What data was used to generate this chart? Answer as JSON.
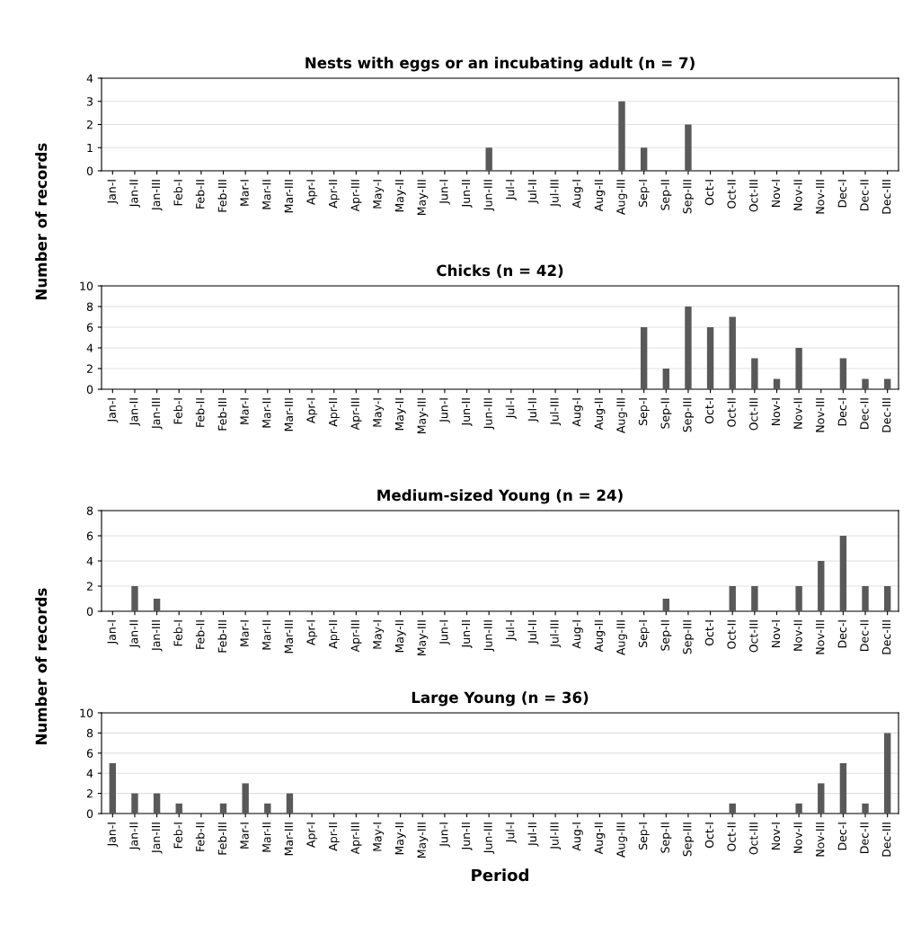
{
  "chart_data": [
    {
      "type": "bar",
      "title": "Nests with eggs or an incubating adult (n = 7)",
      "ylabel": "Number of records",
      "categories": [
        "Jan-I",
        "Jan-II",
        "Jan-III",
        "Feb-I",
        "Feb-II",
        "Feb-III",
        "Mar-I",
        "Mar-II",
        "Mar-III",
        "Apr-I",
        "Apr-II",
        "Apr-III",
        "May-I",
        "May-II",
        "May-III",
        "Jun-I",
        "Jun-II",
        "Jun-III",
        "Jul-I",
        "Jul-II",
        "Jul-III",
        "Aug-I",
        "Aug-II",
        "Aug-III",
        "Sep-I",
        "Sep-II",
        "Sep-III",
        "Oct-I",
        "Oct-II",
        "Oct-III",
        "Nov-I",
        "Nov-II",
        "Nov-III",
        "Dec-I",
        "Dec-II",
        "Dec-III"
      ],
      "values": [
        0,
        0,
        0,
        0,
        0,
        0,
        0,
        0,
        0,
        0,
        0,
        0,
        0,
        0,
        0,
        0,
        0,
        1,
        0,
        0,
        0,
        0,
        0,
        3,
        1,
        0,
        2,
        0,
        0,
        0,
        0,
        0,
        0,
        0,
        0,
        0
      ],
      "color": "#595959",
      "ylim": [
        0,
        4
      ],
      "yticks": [
        0,
        1,
        2,
        3,
        4
      ],
      "grid": "y"
    },
    {
      "type": "bar",
      "title": "Chicks (n = 42)",
      "categories": [
        "Jan-I",
        "Jan-II",
        "Jan-III",
        "Feb-I",
        "Feb-II",
        "Feb-III",
        "Mar-I",
        "Mar-II",
        "Mar-III",
        "Apr-I",
        "Apr-II",
        "Apr-III",
        "May-I",
        "May-II",
        "May-III",
        "Jun-I",
        "Jun-II",
        "Jun-III",
        "Jul-I",
        "Jul-II",
        "Jul-III",
        "Aug-I",
        "Aug-II",
        "Aug-III",
        "Sep-I",
        "Sep-II",
        "Sep-III",
        "Oct-I",
        "Oct-II",
        "Oct-III",
        "Nov-I",
        "Nov-II",
        "Nov-III",
        "Dec-I",
        "Dec-II",
        "Dec-III"
      ],
      "values": [
        0,
        0,
        0,
        0,
        0,
        0,
        0,
        0,
        0,
        0,
        0,
        0,
        0,
        0,
        0,
        0,
        0,
        0,
        0,
        0,
        0,
        0,
        0,
        0,
        6,
        2,
        8,
        6,
        7,
        3,
        1,
        4,
        0,
        3,
        1,
        1
      ],
      "color": "#595959",
      "ylim": [
        0,
        10
      ],
      "yticks": [
        0,
        2,
        4,
        6,
        8,
        10
      ],
      "grid": "y"
    },
    {
      "type": "bar",
      "title": "Medium-sized Young (n = 24)",
      "ylabel": "Number of records",
      "categories": [
        "Jan-I",
        "Jan-II",
        "Jan-III",
        "Feb-I",
        "Feb-II",
        "Feb-III",
        "Mar-I",
        "Mar-II",
        "Mar-III",
        "Apr-I",
        "Apr-II",
        "Apr-III",
        "May-I",
        "May-II",
        "May-III",
        "Jun-I",
        "Jun-II",
        "Jun-III",
        "Jul-I",
        "Jul-II",
        "Jul-III",
        "Aug-I",
        "Aug-II",
        "Aug-III",
        "Sep-I",
        "Sep-II",
        "Sep-III",
        "Oct-I",
        "Oct-II",
        "Oct-III",
        "Nov-I",
        "Nov-II",
        "Nov-III",
        "Dec-I",
        "Dec-II",
        "Dec-III"
      ],
      "values": [
        0,
        2,
        1,
        0,
        0,
        0,
        0,
        0,
        0,
        0,
        0,
        0,
        0,
        0,
        0,
        0,
        0,
        0,
        0,
        0,
        0,
        0,
        0,
        0,
        0,
        1,
        0,
        0,
        2,
        2,
        0,
        2,
        4,
        6,
        2,
        2
      ],
      "color": "#595959",
      "ylim": [
        0,
        8
      ],
      "yticks": [
        0,
        2,
        4,
        6,
        8
      ],
      "grid": "y"
    },
    {
      "type": "bar",
      "title": "Large Young (n = 36)",
      "xlabel": "Period",
      "categories": [
        "Jan-I",
        "Jan-II",
        "Jan-III",
        "Feb-I",
        "Feb-II",
        "Feb-III",
        "Mar-I",
        "Mar-II",
        "Mar-III",
        "Apr-I",
        "Apr-II",
        "Apr-III",
        "May-I",
        "May-II",
        "May-III",
        "Jun-I",
        "Jun-II",
        "Jun-III",
        "Jul-I",
        "Jul-II",
        "Jul-III",
        "Aug-I",
        "Aug-II",
        "Aug-III",
        "Sep-I",
        "Sep-II",
        "Sep-III",
        "Oct-I",
        "Oct-II",
        "Oct-III",
        "Nov-I",
        "Nov-II",
        "Nov-III",
        "Dec-I",
        "Dec-II",
        "Dec-III"
      ],
      "values": [
        5,
        2,
        2,
        1,
        0,
        1,
        3,
        1,
        2,
        0,
        0,
        0,
        0,
        0,
        0,
        0,
        0,
        0,
        0,
        0,
        0,
        0,
        0,
        0,
        0,
        0,
        0,
        0,
        1,
        0,
        0,
        1,
        3,
        5,
        1,
        8
      ],
      "color": "#595959",
      "ylim": [
        0,
        10
      ],
      "yticks": [
        0,
        2,
        4,
        6,
        8,
        10
      ],
      "grid": "y"
    }
  ]
}
